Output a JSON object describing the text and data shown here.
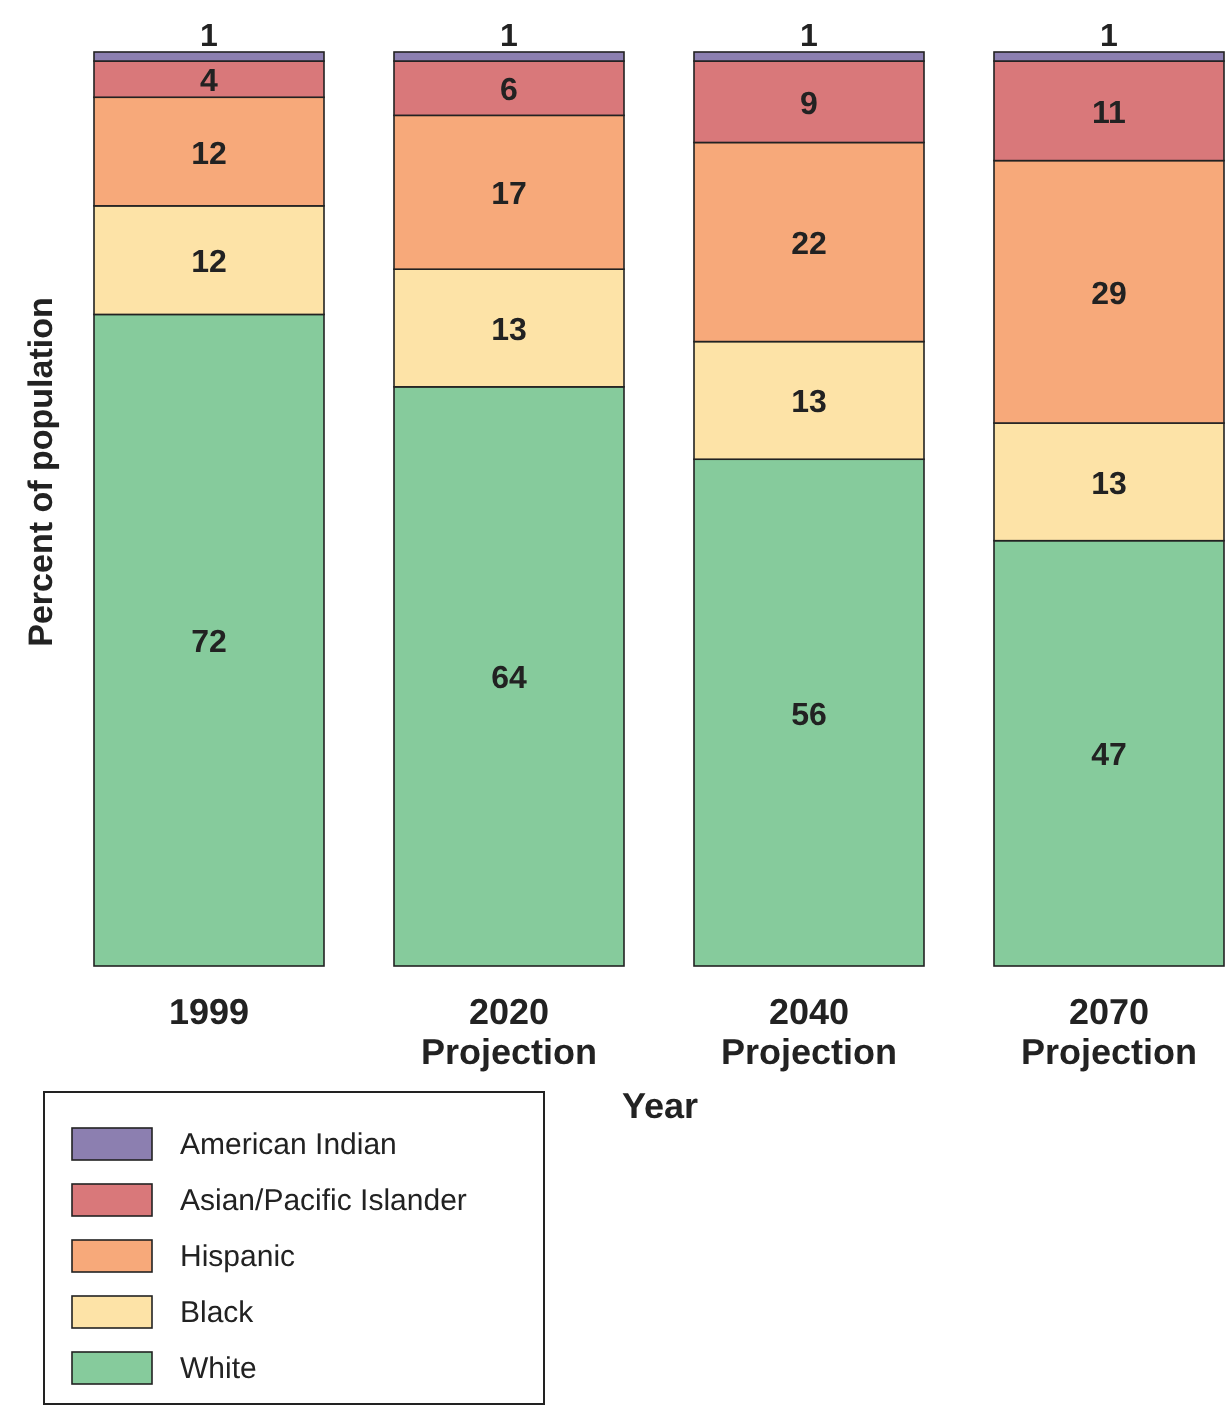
{
  "chart_data": {
    "type": "bar",
    "stacked": true,
    "data_labels": true,
    "xlabel": "Year",
    "ylabel": "Percent of population",
    "legend": "bottom left",
    "categories": [
      "1999",
      "2020 Projection",
      "2040 Projection",
      "2070 Projection"
    ],
    "series": [
      {
        "name": "White",
        "color": "#86cb9c",
        "values": [
          72,
          64,
          56,
          47
        ]
      },
      {
        "name": "Black",
        "color": "#fde3a7",
        "values": [
          12,
          13,
          13,
          13
        ]
      },
      {
        "name": "Hispanic",
        "color": "#f7a97a",
        "values": [
          12,
          17,
          22,
          29
        ]
      },
      {
        "name": "Asian/Pacific Islander",
        "color": "#d9787a",
        "values": [
          4,
          6,
          9,
          11
        ]
      },
      {
        "name": "American Indian",
        "color": "#8c7fb0",
        "values": [
          1,
          1,
          1,
          1
        ]
      }
    ]
  }
}
